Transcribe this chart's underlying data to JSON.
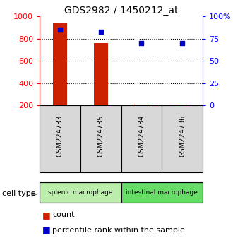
{
  "title": "GDS2982 / 1450212_at",
  "samples": [
    "GSM224733",
    "GSM224735",
    "GSM224734",
    "GSM224736"
  ],
  "counts": [
    940,
    760,
    210,
    210
  ],
  "percentile_ranks": [
    85,
    83,
    70,
    70
  ],
  "ylim_left": [
    200,
    1000
  ],
  "ylim_right": [
    0,
    100
  ],
  "yticks_left": [
    200,
    400,
    600,
    800,
    1000
  ],
  "yticks_right": [
    0,
    25,
    50,
    75,
    100
  ],
  "yticklabels_right": [
    "0",
    "25",
    "50",
    "75",
    "100%"
  ],
  "bar_color": "#cc2200",
  "square_color": "#0000cc",
  "bar_width": 0.35,
  "groups": [
    {
      "label": "splenic macrophage",
      "indices": [
        0,
        1
      ],
      "color": "#bbeeaa"
    },
    {
      "label": "intestinal macrophage",
      "indices": [
        2,
        3
      ],
      "color": "#66dd66"
    }
  ],
  "sample_box_color": "#d8d8d8",
  "background_color": "#ffffff",
  "title_fontsize": 10,
  "axis_fontsize": 8,
  "label_fontsize": 8,
  "legend_fontsize": 8,
  "celltypelabel": "cell type"
}
